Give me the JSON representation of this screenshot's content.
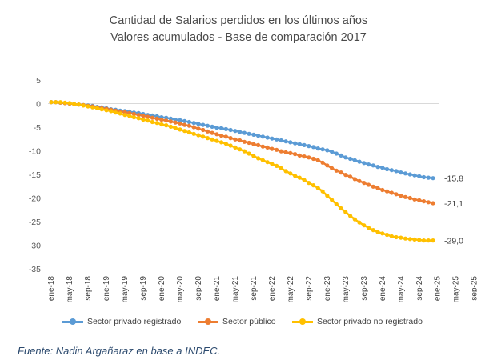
{
  "title": {
    "line1": "Cantidad de Salarios perdidos en los últimos años",
    "line2": "Valores acumulados - Base de comparación 2017"
  },
  "source": "Fuente: Nadin Argañaraz en base a INDEC.",
  "chart_data": {
    "type": "line",
    "title": "Cantidad de Salarios perdidos en los últimos años — Valores acumulados - Base de comparación 2017",
    "xlabel": "",
    "ylabel": "",
    "ylim": [
      -35,
      5
    ],
    "yticks": [
      5,
      0,
      -5,
      -10,
      -15,
      -20,
      -25,
      -30,
      -35
    ],
    "grid": false,
    "legend_position": "bottom",
    "x_tick_labels": [
      "ene-18",
      "may-18",
      "sep-18",
      "ene-19",
      "may-19",
      "sep-19",
      "ene-20",
      "may-20",
      "sep-20",
      "ene-21",
      "may-21",
      "sep-21",
      "ene-22",
      "may-22",
      "sep-22",
      "ene-23",
      "may-23",
      "sep-23",
      "ene-24",
      "may-24",
      "sep-24",
      "ene-25",
      "may-25",
      "sep-25"
    ],
    "x_points_per_tick": 4,
    "series": [
      {
        "name": "Sector privado registrado",
        "color": "#5b9bd5",
        "end_label": "-15,8",
        "values": [
          0.3,
          0.3,
          0.2,
          0.1,
          0.0,
          -0.1,
          -0.2,
          -0.3,
          -0.4,
          -0.5,
          -0.7,
          -0.8,
          -1.0,
          -1.2,
          -1.3,
          -1.5,
          -1.6,
          -1.7,
          -1.9,
          -2.0,
          -2.2,
          -2.4,
          -2.5,
          -2.7,
          -2.9,
          -3.0,
          -3.2,
          -3.4,
          -3.5,
          -3.7,
          -3.9,
          -4.1,
          -4.3,
          -4.5,
          -4.7,
          -4.9,
          -5.1,
          -5.2,
          -5.4,
          -5.6,
          -5.8,
          -6.0,
          -6.2,
          -6.4,
          -6.6,
          -6.8,
          -7.0,
          -7.2,
          -7.4,
          -7.6,
          -7.8,
          -8.0,
          -8.2,
          -8.4,
          -8.6,
          -8.8,
          -9.0,
          -9.2,
          -9.5,
          -9.7,
          -9.9,
          -10.2,
          -10.6,
          -11.0,
          -11.4,
          -11.7,
          -12.0,
          -12.3,
          -12.6,
          -12.9,
          -13.1,
          -13.4,
          -13.6,
          -13.9,
          -14.1,
          -14.3,
          -14.6,
          -14.8,
          -15.0,
          -15.2,
          -15.4,
          -15.6,
          -15.7,
          -15.8
        ]
      },
      {
        "name": "Sector público",
        "color": "#ed7d31",
        "end_label": "-21,1",
        "values": [
          0.3,
          0.3,
          0.2,
          0.1,
          0.0,
          -0.1,
          -0.2,
          -0.3,
          -0.5,
          -0.6,
          -0.8,
          -1.0,
          -1.1,
          -1.3,
          -1.5,
          -1.7,
          -1.8,
          -2.0,
          -2.2,
          -2.4,
          -2.6,
          -2.8,
          -3.0,
          -3.2,
          -3.4,
          -3.6,
          -3.8,
          -4.0,
          -4.2,
          -4.5,
          -4.7,
          -5.0,
          -5.3,
          -5.6,
          -5.9,
          -6.2,
          -6.5,
          -6.8,
          -7.0,
          -7.3,
          -7.6,
          -7.8,
          -8.1,
          -8.3,
          -8.6,
          -8.8,
          -9.1,
          -9.3,
          -9.6,
          -9.8,
          -10.1,
          -10.3,
          -10.5,
          -10.7,
          -11.0,
          -11.2,
          -11.4,
          -11.7,
          -12.0,
          -12.5,
          -13.1,
          -13.7,
          -14.2,
          -14.6,
          -15.1,
          -15.5,
          -16.0,
          -16.4,
          -16.8,
          -17.2,
          -17.6,
          -17.9,
          -18.3,
          -18.6,
          -18.9,
          -19.2,
          -19.5,
          -19.8,
          -20.0,
          -20.3,
          -20.5,
          -20.7,
          -20.9,
          -21.1
        ]
      },
      {
        "name": "Sector privado no registrado",
        "color": "#ffc000",
        "end_label": "-29,0",
        "values": [
          0.3,
          0.3,
          0.3,
          0.2,
          0.1,
          -0.1,
          -0.2,
          -0.4,
          -0.6,
          -0.8,
          -1.0,
          -1.2,
          -1.4,
          -1.6,
          -1.9,
          -2.1,
          -2.4,
          -2.6,
          -2.9,
          -3.1,
          -3.4,
          -3.6,
          -3.9,
          -4.1,
          -4.4,
          -4.6,
          -4.9,
          -5.2,
          -5.5,
          -5.8,
          -6.1,
          -6.4,
          -6.7,
          -7.0,
          -7.3,
          -7.6,
          -7.9,
          -8.2,
          -8.5,
          -8.9,
          -9.3,
          -9.7,
          -10.1,
          -10.6,
          -11.1,
          -11.6,
          -12.0,
          -12.4,
          -12.8,
          -13.2,
          -13.7,
          -14.3,
          -14.8,
          -15.3,
          -15.7,
          -16.2,
          -16.8,
          -17.3,
          -17.9,
          -18.6,
          -19.5,
          -20.4,
          -21.3,
          -22.2,
          -23.0,
          -23.8,
          -24.5,
          -25.2,
          -25.8,
          -26.3,
          -26.8,
          -27.2,
          -27.5,
          -27.8,
          -28.1,
          -28.3,
          -28.4,
          -28.6,
          -28.7,
          -28.8,
          -28.9,
          -29.0,
          -29.0,
          -29.0
        ]
      }
    ]
  }
}
